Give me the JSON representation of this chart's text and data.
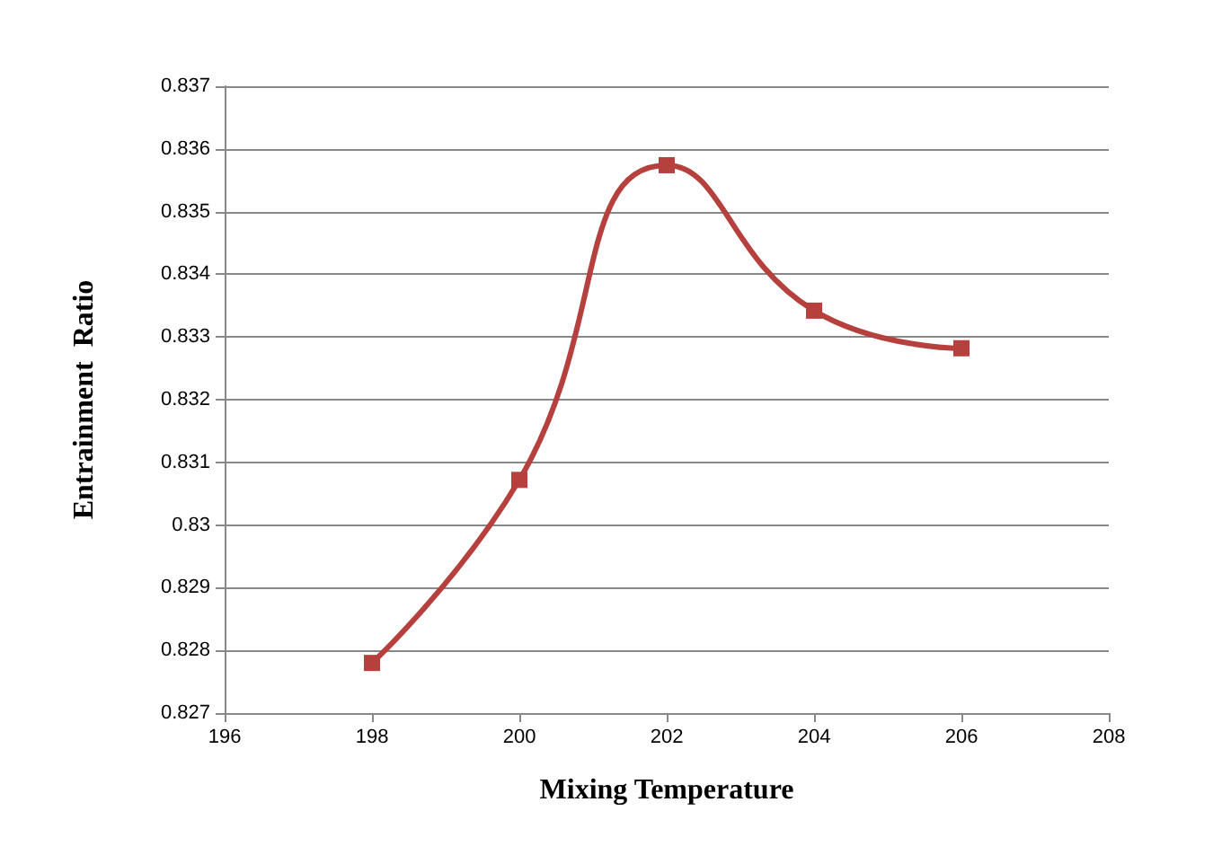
{
  "chart_data": {
    "type": "line",
    "xlabel": "Mixing Temperature",
    "ylabel": "Entrainment  Ratio",
    "x": [
      198,
      200,
      202,
      204,
      206
    ],
    "series": [
      {
        "color": "#b5403d",
        "values": [
          0.8278,
          0.83072,
          0.83574,
          0.83342,
          0.83282
        ]
      }
    ],
    "xlim": [
      196,
      208
    ],
    "xticks": [
      196,
      198,
      200,
      202,
      204,
      206,
      208
    ],
    "ylim": [
      0.827,
      0.837
    ],
    "yticks": [
      0.827,
      0.828,
      0.829,
      0.83,
      0.831,
      0.832,
      0.833,
      0.834,
      0.835,
      0.836,
      0.837
    ],
    "grid": "y",
    "marker": "square",
    "line_style": "solid"
  }
}
